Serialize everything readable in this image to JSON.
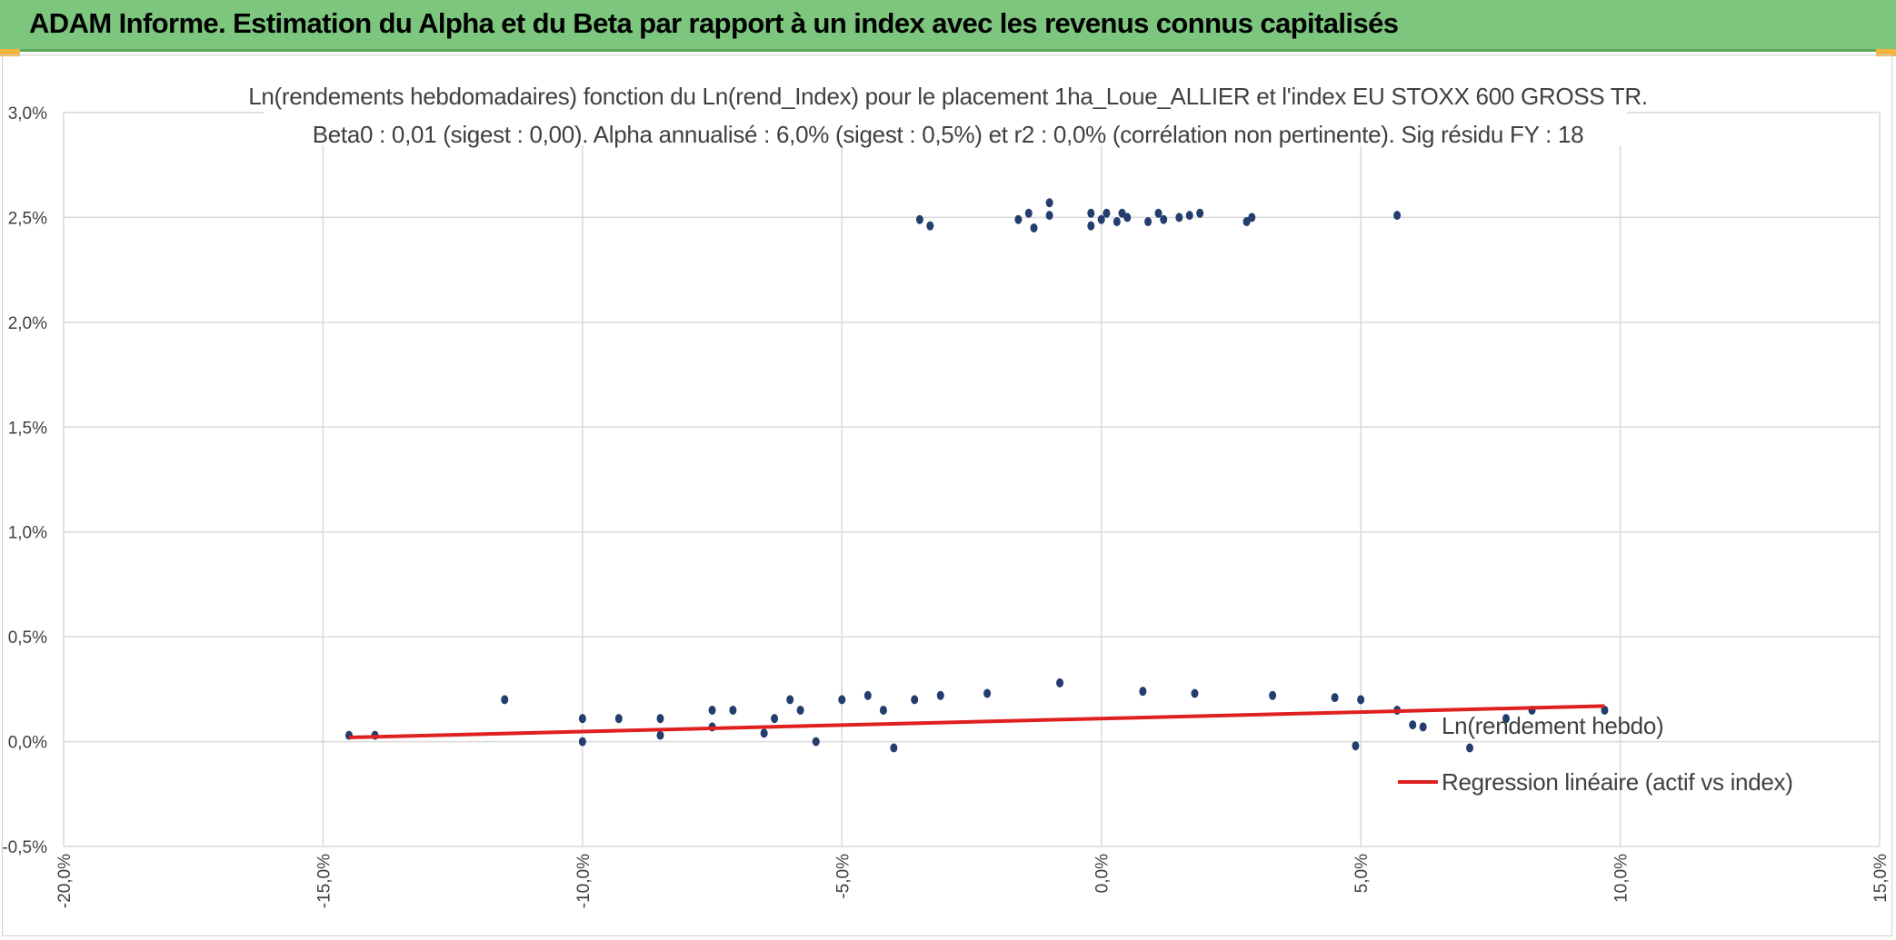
{
  "header": {
    "title": "ADAM Informe. Estimation du Alpha et du Beta par rapport à un index avec les revenus connus capitalisés"
  },
  "colors": {
    "banner": "#7dc67e",
    "points": "#233e6e",
    "regression": "#e02020",
    "grid": "#d9d9d9"
  },
  "chart_data": {
    "type": "scatter",
    "title": "Ln(rendements hebdomadaires) fonction du Ln(rend_Index) pour le placement 1ha_Loue_ALLIER et l'index EU STOXX 600 GROSS TR.",
    "subtitle": "Beta0 : 0,01 (sigest : 0,00). Alpha annualisé : 6,0% (sigest : 0,5%) et r2 : 0,0% (corrélation non pertinente). Sig résidu FY : 18",
    "xlabel": "",
    "ylabel": "",
    "xlim": [
      -0.2,
      0.15
    ],
    "ylim": [
      -0.005,
      0.03
    ],
    "x_ticks": [
      -0.2,
      -0.15,
      -0.1,
      -0.05,
      0.0,
      0.05,
      0.1,
      0.15
    ],
    "x_tick_labels": [
      "-20,0%",
      "-15,0%",
      "-10,0%",
      "-5,0%",
      "0,0%",
      "5,0%",
      "10,0%",
      "15,0%"
    ],
    "y_ticks": [
      -0.005,
      0.0,
      0.005,
      0.01,
      0.015,
      0.02,
      0.025,
      0.03
    ],
    "y_tick_labels": [
      "-0,5%",
      "0,0%",
      "0,5%",
      "1,0%",
      "1,5%",
      "2,0%",
      "2,5%",
      "3,0%"
    ],
    "grid": true,
    "legend_position": "right",
    "series": [
      {
        "name": "Ln(rendement hebdo)",
        "kind": "scatter",
        "color": "#233e6e",
        "points": [
          [
            -0.145,
            0.0003
          ],
          [
            -0.14,
            0.0003
          ],
          [
            -0.115,
            0.002
          ],
          [
            -0.1,
            0.0011
          ],
          [
            -0.1,
            0.0
          ],
          [
            -0.093,
            0.0011
          ],
          [
            -0.085,
            0.0011
          ],
          [
            -0.085,
            0.0003
          ],
          [
            -0.075,
            0.0015
          ],
          [
            -0.075,
            0.0007
          ],
          [
            -0.071,
            0.0015
          ],
          [
            -0.065,
            0.0004
          ],
          [
            -0.063,
            0.0011
          ],
          [
            -0.06,
            0.002
          ],
          [
            -0.058,
            0.0015
          ],
          [
            -0.055,
            0.0
          ],
          [
            -0.05,
            0.002
          ],
          [
            -0.045,
            0.0022
          ],
          [
            -0.042,
            0.0015
          ],
          [
            -0.04,
            -0.0003
          ],
          [
            -0.036,
            0.002
          ],
          [
            -0.035,
            0.0249
          ],
          [
            -0.033,
            0.0246
          ],
          [
            -0.031,
            0.0022
          ],
          [
            -0.016,
            0.0249
          ],
          [
            -0.014,
            0.0252
          ],
          [
            -0.013,
            0.0245
          ],
          [
            -0.01,
            0.0257
          ],
          [
            -0.01,
            0.0251
          ],
          [
            -0.002,
            0.0252
          ],
          [
            -0.002,
            0.0246
          ],
          [
            0.0,
            0.0249
          ],
          [
            0.001,
            0.0252
          ],
          [
            0.003,
            0.0248
          ],
          [
            0.004,
            0.0252
          ],
          [
            0.005,
            0.025
          ],
          [
            0.009,
            0.0248
          ],
          [
            0.011,
            0.0252
          ],
          [
            0.012,
            0.0249
          ],
          [
            0.015,
            0.025
          ],
          [
            0.017,
            0.0251
          ],
          [
            0.019,
            0.0252
          ],
          [
            0.028,
            0.0248
          ],
          [
            0.029,
            0.025
          ],
          [
            0.057,
            0.0251
          ],
          [
            0.05,
            0.002
          ],
          [
            0.057,
            0.0015
          ],
          [
            0.06,
            0.0008
          ],
          [
            0.062,
            0.0007
          ],
          [
            0.071,
            -0.0003
          ],
          [
            0.078,
            0.0011
          ],
          [
            0.083,
            0.0015
          ],
          [
            0.097,
            0.0015
          ],
          [
            -0.022,
            0.0023
          ],
          [
            -0.008,
            0.0028
          ],
          [
            0.008,
            0.0024
          ],
          [
            0.018,
            0.0023
          ],
          [
            0.033,
            0.0022
          ],
          [
            0.045,
            0.0021
          ],
          [
            0.049,
            -0.0002
          ]
        ]
      },
      {
        "name": "Regression linéaire (actif vs index)",
        "kind": "line",
        "color": "#e02020",
        "points": [
          [
            -0.145,
            0.0002
          ],
          [
            0.097,
            0.0017
          ]
        ]
      }
    ]
  }
}
